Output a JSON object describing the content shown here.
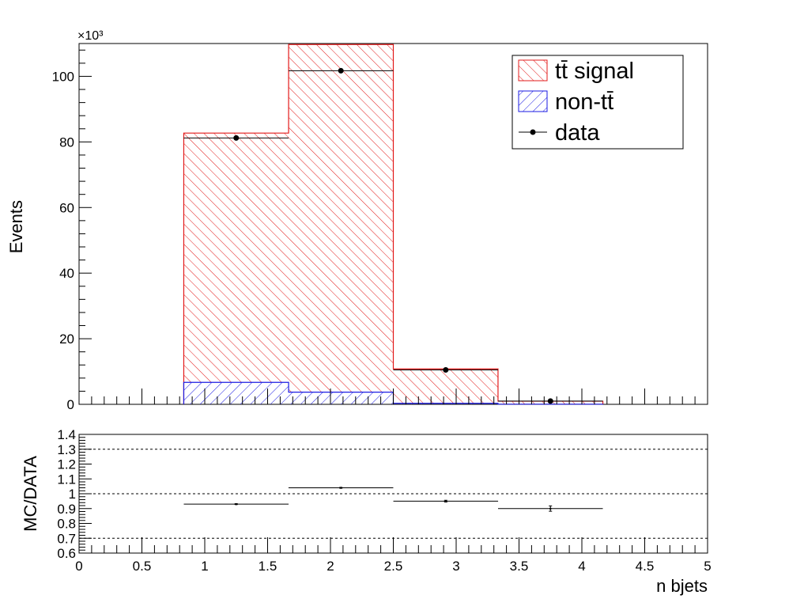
{
  "chart_data": [
    {
      "type": "bar",
      "ylabel": "Events",
      "y_multiplier": "×10³",
      "ylim": [
        0,
        110
      ],
      "xlim": [
        0,
        5
      ],
      "bin_edges": [
        0.833,
        1.667,
        2.5,
        3.333,
        4.167
      ],
      "legend_position": "top-right",
      "series": [
        {
          "name": "tt̄ signal",
          "values": [
            76,
            106,
            10.5,
            0.9
          ],
          "color": "#e31b1b",
          "style": "hatched-/"
        },
        {
          "name": "non-tt̄",
          "values": [
            6.7,
            3.7,
            0.3,
            0.05
          ],
          "color": "#1b1be3",
          "style": "hatched-\\"
        },
        {
          "name": "data",
          "values": [
            81.2,
            101.7,
            10.5,
            1.0
          ],
          "x": [
            1.25,
            2.083,
            2.917,
            3.75
          ],
          "color": "#000000",
          "style": "points"
        }
      ],
      "yticks": [
        0,
        20,
        40,
        60,
        80,
        100
      ]
    },
    {
      "type": "scatter",
      "xlabel": "n bjets",
      "ylabel": "MC/DATA",
      "xlim": [
        0,
        5
      ],
      "ylim": [
        0.6,
        1.4
      ],
      "x": [
        1.25,
        2.083,
        2.917,
        3.75
      ],
      "values": [
        0.93,
        1.04,
        0.95,
        0.9
      ],
      "errors": [
        0.003,
        0.003,
        0.006,
        0.018
      ],
      "x_half_width": 0.4167,
      "reference_lines": [
        0.7,
        1.0,
        1.3
      ],
      "yticks": [
        0.6,
        0.7,
        0.8,
        0.9,
        1,
        1.1,
        1.2,
        1.3,
        1.4
      ],
      "xticks": [
        0,
        0.5,
        1,
        1.5,
        2,
        2.5,
        3,
        3.5,
        4,
        4.5,
        5
      ]
    }
  ]
}
